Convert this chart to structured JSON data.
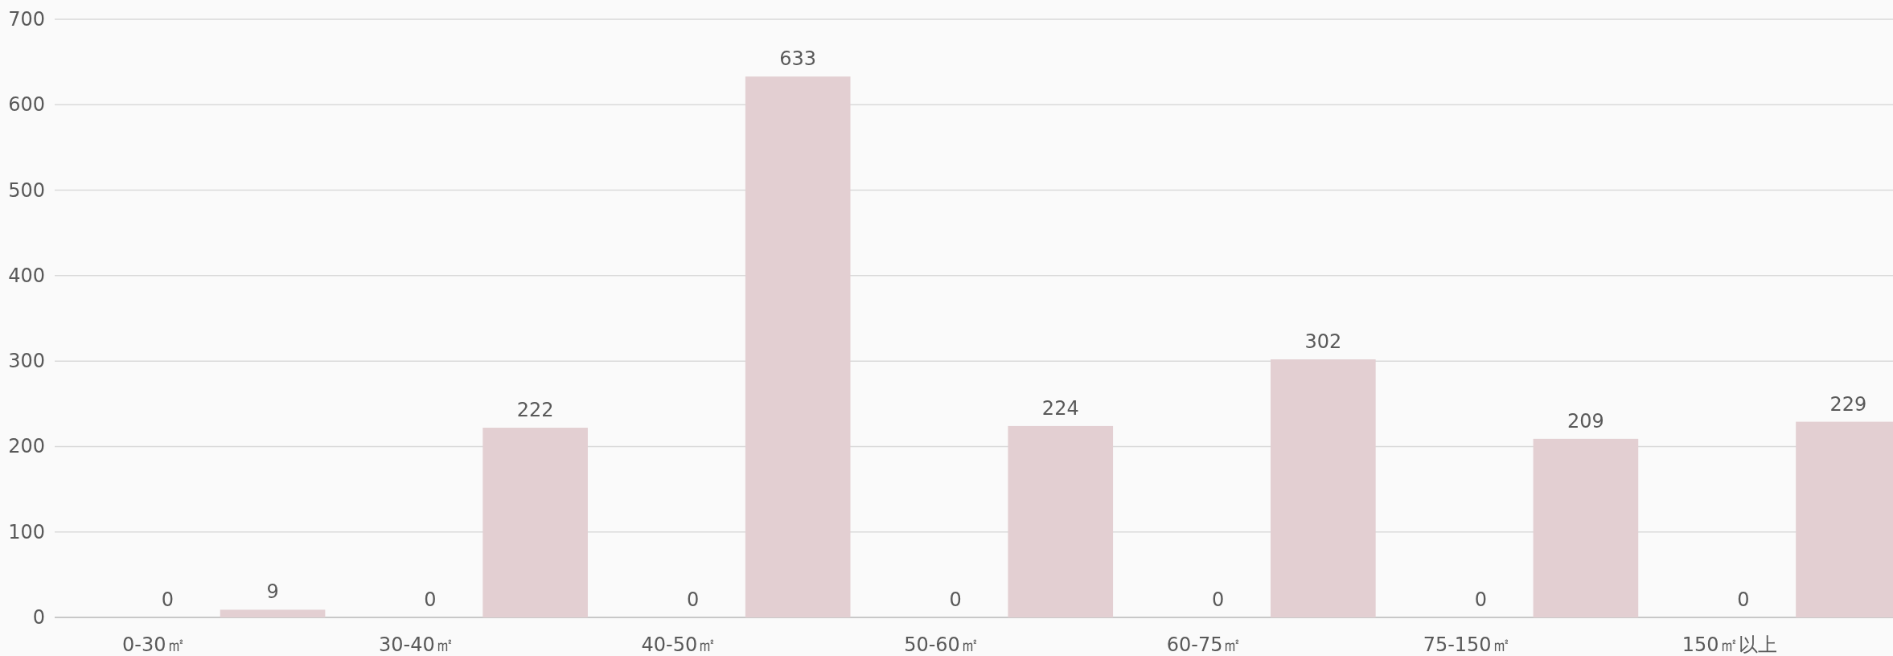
{
  "chart_data": {
    "type": "bar",
    "categories": [
      "0-30㎡",
      "30-40㎡",
      "40-50㎡",
      "50-60㎡",
      "60-75㎡",
      "75-150㎡",
      "150㎡以上"
    ],
    "series": [
      {
        "values": [
          0,
          0,
          0,
          0,
          0,
          0,
          0
        ]
      },
      {
        "color": "#e3cfd2",
        "values": [
          9,
          222,
          633,
          224,
          302,
          209,
          229
        ]
      }
    ],
    "ylim": [
      0,
      700
    ],
    "yticks": [
      0,
      100,
      200,
      300,
      400,
      500,
      600,
      700
    ],
    "grid": "y",
    "data_labels": true
  }
}
